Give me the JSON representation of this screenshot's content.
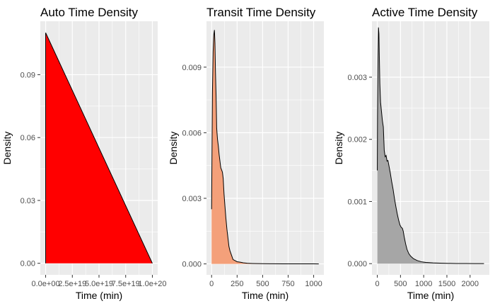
{
  "chart_data": [
    {
      "type": "area",
      "title": "Auto Time Density",
      "xlabel": "Time (min)",
      "ylabel": "Density",
      "xlim": [
        -5e+18,
        1.05e+20
      ],
      "ylim": [
        -0.0055,
        0.1155
      ],
      "xticks": [
        0,
        2.5e+19,
        5e+19,
        7.5e+19,
        1e+20
      ],
      "xtick_labels": [
        "0.0e+00",
        "2.5e+19",
        "5.0e+19",
        "7.5e+19",
        "1.0e+20"
      ],
      "yticks": [
        0,
        0.03,
        0.06,
        0.09
      ],
      "ytick_labels": [
        "0.00",
        "0.03",
        "0.06",
        "0.09"
      ],
      "fill": "#ff0000",
      "grid": true,
      "series": [
        {
          "x": [
            0,
            0,
            1e+20
          ],
          "y": [
            0,
            0.11,
            0
          ]
        }
      ]
    },
    {
      "type": "area",
      "title": "Transit Time Density",
      "xlabel": "Time (min)",
      "ylabel": "Density",
      "xlim": [
        -50,
        1100
      ],
      "ylim": [
        -0.0005,
        0.0111
      ],
      "xticks": [
        0,
        250,
        500,
        750,
        1000
      ],
      "xtick_labels": [
        "0",
        "250",
        "500",
        "750",
        "1000"
      ],
      "yticks": [
        0,
        0.003,
        0.006,
        0.009
      ],
      "ytick_labels": [
        "0.000",
        "0.003",
        "0.006",
        "0.009"
      ],
      "fill": "#f4a07a",
      "grid": true,
      "series": [
        {
          "x": [
            0,
            3,
            8,
            15,
            22,
            28,
            33,
            38,
            44,
            50,
            58,
            66,
            74,
            82,
            90,
            98,
            106,
            114,
            122,
            130,
            140,
            150,
            160,
            170,
            180,
            195,
            210,
            230,
            250,
            280,
            310,
            350,
            400,
            500,
            600,
            700,
            800,
            900,
            1000,
            1050
          ],
          "y": [
            0.0025,
            0.0045,
            0.0078,
            0.0097,
            0.0105,
            0.0107,
            0.0101,
            0.0088,
            0.0077,
            0.0062,
            0.0057,
            0.0054,
            0.005,
            0.0047,
            0.0044,
            0.0043,
            0.0042,
            0.0039,
            0.0032,
            0.0027,
            0.0021,
            0.0016,
            0.0012,
            0.0008,
            0.0006,
            0.0004,
            0.0002,
            0.00015,
            0.0001,
            8e-05,
            5e-05,
            3e-05,
            2e-05,
            1e-05,
            5e-06,
            3e-06,
            2e-06,
            1e-06,
            1e-06,
            0
          ]
        }
      ]
    },
    {
      "type": "area",
      "title": "Active Time Density",
      "xlabel": "Time (min)",
      "ylabel": "Density",
      "xlim": [
        -115,
        2415
      ],
      "ylim": [
        -0.00018,
        0.0039
      ],
      "xticks": [
        0,
        500,
        1000,
        1500,
        2000
      ],
      "xtick_labels": [
        "0",
        "500",
        "1000",
        "1500",
        "2000"
      ],
      "yticks": [
        0,
        0.001,
        0.002,
        0.003
      ],
      "ytick_labels": [
        "0.000",
        "0.001",
        "0.002",
        "0.003"
      ],
      "fill": "#a6a6a6",
      "grid": true,
      "series": [
        {
          "x": [
            0,
            5,
            15,
            25,
            35,
            45,
            55,
            70,
            90,
            110,
            130,
            150,
            170,
            190,
            210,
            230,
            250,
            280,
            310,
            340,
            370,
            400,
            430,
            460,
            490,
            520,
            540,
            560,
            580,
            610,
            640,
            680,
            720,
            780,
            860,
            950,
            1050,
            1200,
            1350,
            1500,
            1700,
            1900,
            2100,
            2300
          ],
          "y": [
            0.0015,
            0.0024,
            0.0033,
            0.0038,
            0.0037,
            0.0033,
            0.0029,
            0.0026,
            0.00245,
            0.0023,
            0.0022,
            0.00182,
            0.00172,
            0.00174,
            0.00165,
            0.00166,
            0.00158,
            0.00146,
            0.00132,
            0.0012,
            0.00105,
            0.00092,
            0.0008,
            0.0007,
            0.00062,
            0.00058,
            0.00057,
            0.00052,
            0.00043,
            0.00032,
            0.00023,
            0.00016,
            0.00012,
            8e-05,
            5e-05,
            3e-05,
            2e-05,
            1.2e-05,
            8e-06,
            5e-06,
            3e-06,
            2e-06,
            1e-06,
            1e-06
          ]
        }
      ]
    }
  ]
}
